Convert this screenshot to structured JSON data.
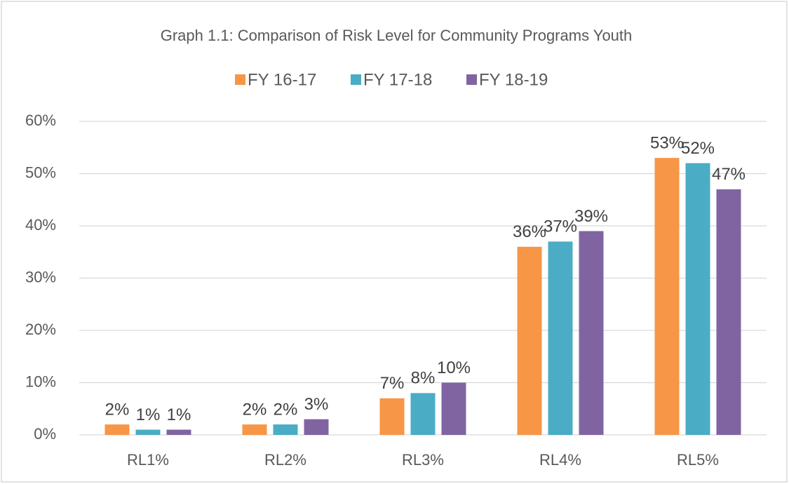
{
  "chart_data": {
    "type": "bar",
    "title": "Graph 1.1: Comparison of Risk Level for Community Programs Youth",
    "categories": [
      "RL1%",
      "RL2%",
      "RL3%",
      "RL4%",
      "RL5%"
    ],
    "series": [
      {
        "name": "FY 16-17",
        "color": "#f79646",
        "values": [
          2,
          2,
          7,
          36,
          53
        ],
        "value_labels": [
          "2%",
          "2%",
          "7%",
          "36%",
          "53%"
        ]
      },
      {
        "name": "FY 17-18",
        "color": "#4bacc6",
        "values": [
          1,
          2,
          8,
          37,
          52
        ],
        "value_labels": [
          "1%",
          "2%",
          "8%",
          "37%",
          "52%"
        ]
      },
      {
        "name": "FY 18-19",
        "color": "#8064a2",
        "values": [
          1,
          3,
          10,
          39,
          47
        ],
        "value_labels": [
          "1%",
          "3%",
          "10%",
          "39%",
          "47%"
        ]
      }
    ],
    "ylim": [
      0,
      60
    ],
    "yticks": [
      {
        "value": 0,
        "label": "0%"
      },
      {
        "value": 10,
        "label": "10%"
      },
      {
        "value": 20,
        "label": "20%"
      },
      {
        "value": 30,
        "label": "30%"
      },
      {
        "value": 40,
        "label": "40%"
      },
      {
        "value": 50,
        "label": "50%"
      },
      {
        "value": 60,
        "label": "60%"
      }
    ],
    "grid": true,
    "legend": "top"
  }
}
